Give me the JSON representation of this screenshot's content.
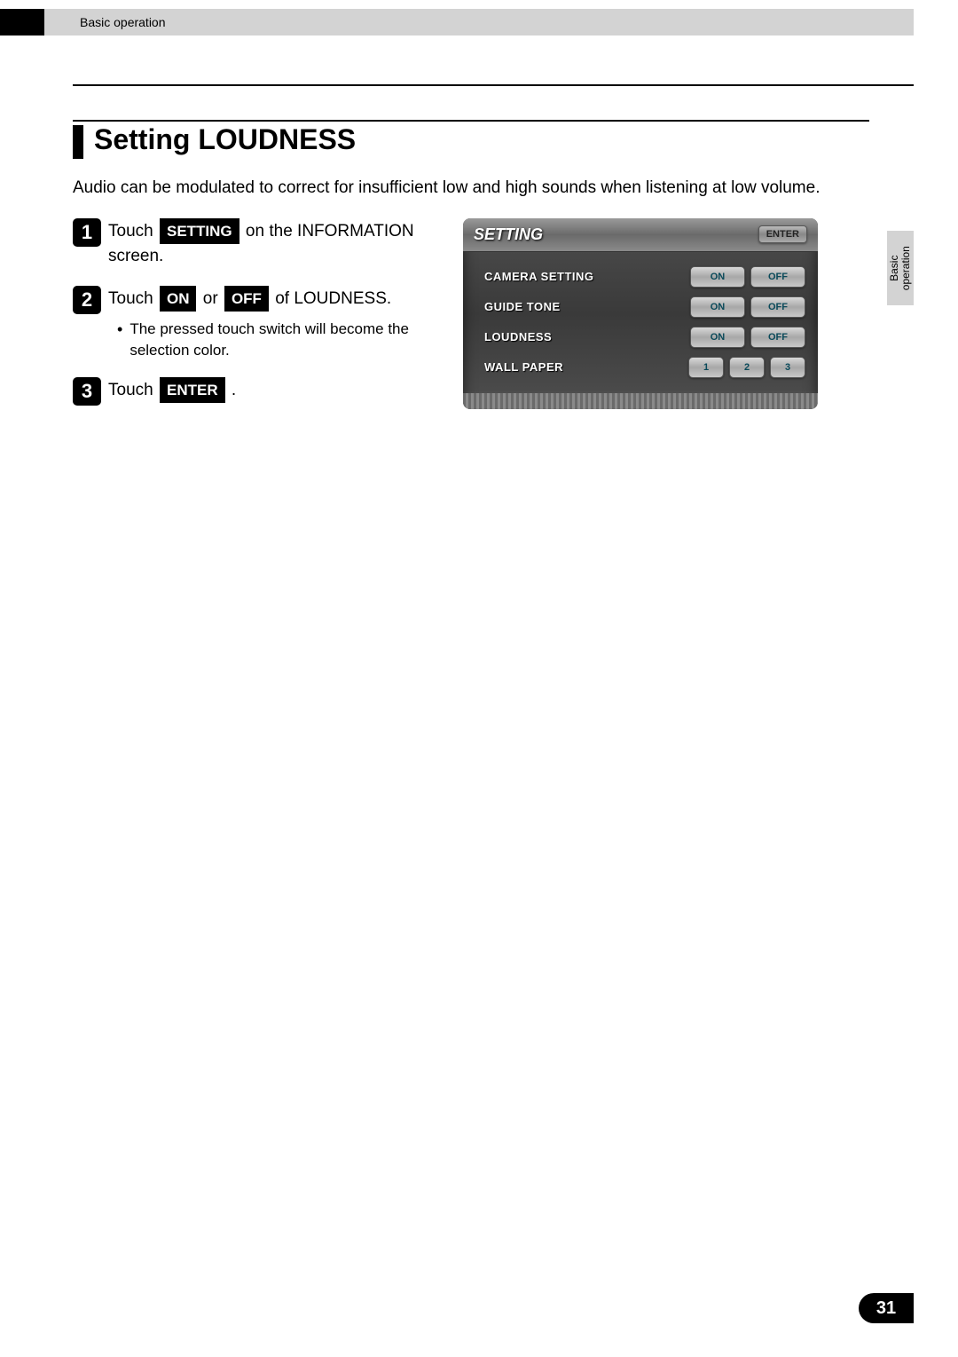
{
  "header": {
    "breadcrumb": "Basic operation"
  },
  "section": {
    "title": "Setting LOUDNESS",
    "intro": "Audio can be modulated to correct for insufficient low and high sounds when listening at low volume."
  },
  "steps": {
    "s1": {
      "num": "1",
      "pre": "Touch ",
      "btn": "SETTING",
      "post": " on the INFORMATION screen."
    },
    "s2": {
      "num": "2",
      "pre": "Touch ",
      "btn1": "ON",
      "mid": " or ",
      "btn2": "OFF",
      "post": " of LOUDNESS.",
      "bullet": "The pressed touch switch will become the selection color."
    },
    "s3": {
      "num": "3",
      "pre": "Touch ",
      "btn": "ENTER",
      "post": " ."
    }
  },
  "screen": {
    "title": "SETTING",
    "enter": "ENTER",
    "rows": {
      "r1": {
        "label": "CAMERA SETTING",
        "on": "ON",
        "off": "OFF"
      },
      "r2": {
        "label": "GUIDE TONE",
        "on": "ON",
        "off": "OFF"
      },
      "r3": {
        "label": "LOUDNESS",
        "on": "ON",
        "off": "OFF"
      },
      "r4": {
        "label": "WALL PAPER",
        "b1": "1",
        "b2": "2",
        "b3": "3"
      }
    }
  },
  "sideTab": {
    "line1": "Basic",
    "line2": "operation"
  },
  "footer": {
    "pageNumber": "31"
  },
  "colors": {
    "header_bg": "#d3d3d3",
    "black": "#000000",
    "step_num_bg": "#000000",
    "screen_btn_text": "#0a4a5a"
  }
}
